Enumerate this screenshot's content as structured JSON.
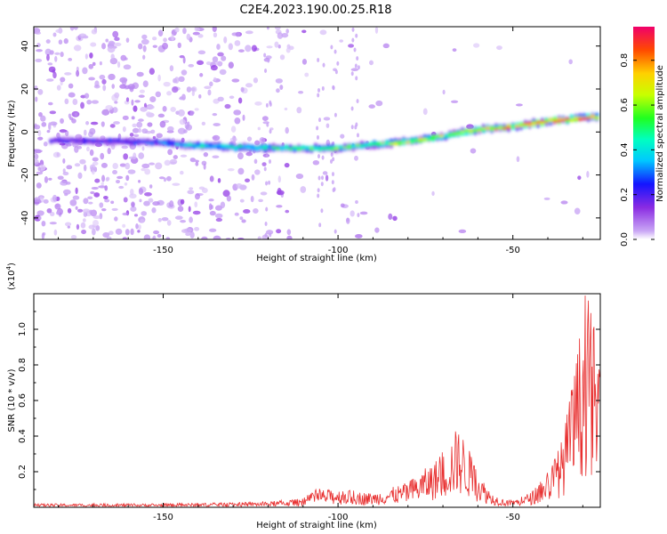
{
  "title": "C2E4.2023.190.00.25.R18",
  "chart_data": [
    {
      "type": "heatmap",
      "xlabel": "Height of straight line (km)",
      "ylabel": "Frequency (Hz)",
      "xlim": [
        -187,
        -25
      ],
      "ylim": [
        -50,
        49
      ],
      "xticks": [
        -150,
        -100,
        -50
      ],
      "yticks": [
        -40,
        -20,
        0,
        20,
        40
      ],
      "colorbar": {
        "label": "Normalized spectral amplitude",
        "range": [
          0,
          0.95
        ],
        "ticks": [
          0.0,
          0.2,
          0.4,
          0.6,
          0.8
        ]
      },
      "ridge": {
        "x": [
          -180,
          -160,
          -150,
          -140,
          -130,
          -120,
          -110,
          -100,
          -90,
          -80,
          -70,
          -60,
          -50,
          -40,
          -30,
          -27
        ],
        "frequency": [
          -4,
          -4.5,
          -5,
          -6.5,
          -7,
          -7.5,
          -7.5,
          -7.5,
          -6,
          -4.5,
          -2,
          1,
          2.5,
          5,
          6.5,
          7
        ],
        "amplitude": [
          0.2,
          0.25,
          0.3,
          0.4,
          0.45,
          0.45,
          0.5,
          0.55,
          0.5,
          0.65,
          0.6,
          0.7,
          0.75,
          0.85,
          0.9,
          0.7
        ]
      }
    },
    {
      "type": "line",
      "xlabel": "Height of straight line (km)",
      "ylabel": "SNR (10 * v/v)",
      "y_multiplier_label": "(x10",
      "y_multiplier_exp": "4",
      "y_multiplier_close": ")",
      "xlim": [
        -187,
        -25
      ],
      "ylim": [
        0,
        1.2
      ],
      "xticks": [
        -150,
        -100,
        -50
      ],
      "yticks": [
        0.2,
        0.4,
        0.6,
        0.8,
        1.0
      ],
      "ytick_labels": [
        "0.2",
        "0.4",
        "0.6",
        "0.8",
        "1.0"
      ],
      "color": "#e83030",
      "envelope": {
        "x": [
          -187,
          -150,
          -120,
          -110,
          -106,
          -100,
          -90,
          -80,
          -75,
          -70,
          -66,
          -64,
          -60,
          -56,
          -52,
          -48,
          -44,
          -40,
          -36,
          -33,
          -30,
          -28,
          -26,
          -25
        ],
        "y": [
          0.02,
          0.02,
          0.03,
          0.05,
          0.1,
          0.1,
          0.08,
          0.14,
          0.22,
          0.3,
          0.45,
          0.4,
          0.2,
          0.08,
          0.04,
          0.05,
          0.1,
          0.2,
          0.38,
          0.7,
          1.1,
          1.2,
          0.9,
          0.7
        ]
      }
    }
  ]
}
